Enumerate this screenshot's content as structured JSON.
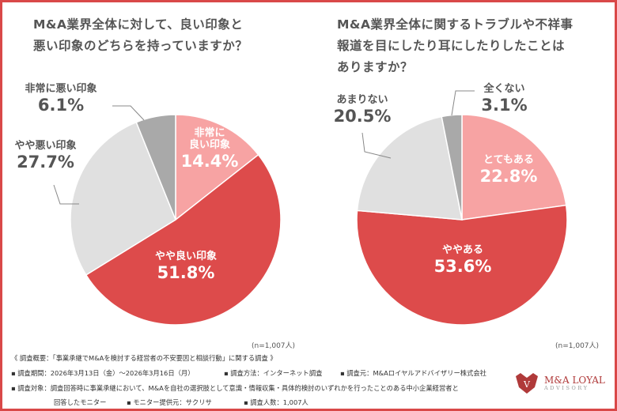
{
  "colors": {
    "frame": "#d94848",
    "very_good": "#f7a3a3",
    "good": "#dd4b4b",
    "bad": "#e0e0e0",
    "very_bad": "#a9a9a9"
  },
  "chart_data": [
    {
      "type": "pie",
      "title": "M&A業界全体に対して、良い印象と\n悪い印象のどちらを持っていますか？",
      "note": "(n=1,007人)",
      "slices": [
        {
          "label": "非常に良い印象",
          "label_lines": [
            "非常に",
            "良い印象"
          ],
          "value": 14.4,
          "display": "14.4%",
          "color": "#f7a3a3"
        },
        {
          "label": "やや良い印象",
          "label_lines": [
            "やや良い印象"
          ],
          "value": 51.8,
          "display": "51.8%",
          "color": "#dd4b4b"
        },
        {
          "label": "やや悪い印象",
          "label_lines": [
            "やや悪い印象"
          ],
          "value": 27.7,
          "display": "27.7%",
          "color": "#e0e0e0"
        },
        {
          "label": "非常に悪い印象",
          "label_lines": [
            "非常に悪い印象"
          ],
          "value": 6.1,
          "display": "6.1%",
          "color": "#a9a9a9"
        }
      ]
    },
    {
      "type": "pie",
      "title": "M&A業界全体に関するトラブルや不祥事\n報道を目にしたり耳にしたりしたことは\nありますか？",
      "note": "(n=1,007人)",
      "slices": [
        {
          "label": "とてもある",
          "label_lines": [
            "とてもある"
          ],
          "value": 22.8,
          "display": "22.8%",
          "color": "#f7a3a3"
        },
        {
          "label": "ややある",
          "label_lines": [
            "ややある"
          ],
          "value": 53.6,
          "display": "53.6%",
          "color": "#dd4b4b"
        },
        {
          "label": "あまりない",
          "label_lines": [
            "あまりない"
          ],
          "value": 20.5,
          "display": "20.5%",
          "color": "#e0e0e0"
        },
        {
          "label": "全くない",
          "label_lines": [
            "全くない"
          ],
          "value": 3.1,
          "display": "3.1%",
          "color": "#a9a9a9"
        }
      ]
    }
  ],
  "footer": {
    "line1": "《 調査概要：「事業承継でM&Aを検討する経営者の不安要因と相談行動」に関する調査 》",
    "period": "▪ 調査期間：2026年3月13日（金）～2026年3月16日（月）",
    "method": "▪ 調査方法：インターネット調査",
    "org": "▪ 調査元：M&Aロイヤルアドバイザリー株式会社",
    "target": "▪ 調査対象：調査回答時に事業承継において、M&Aを自社の選択肢として意識・情報収集・具体的検討のいずれかを行ったことのある中小企業経営者と",
    "target2": "回答したモニター",
    "provider": "▪ モニター提供元：サクリサ",
    "count": "▪ 調査人数：1,007人"
  },
  "logo": {
    "main": "M&A LOYAL",
    "sub": "ADVISORY"
  }
}
